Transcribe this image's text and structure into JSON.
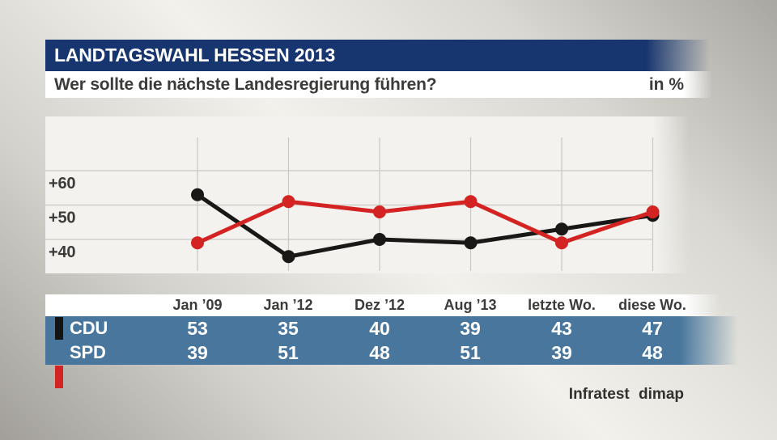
{
  "header": {
    "kicker": "LANDTAGSWAHL HESSEN 2013",
    "question": "Wer sollte die nächste Landesregierung führen?",
    "unit": "in %"
  },
  "chart_data": {
    "type": "line",
    "x": [
      "Jan ’09",
      "Jan ’12",
      "Dez ’12",
      "Aug ’13",
      "letzte Wo.",
      "diese Wo."
    ],
    "series": [
      {
        "name": "CDU",
        "color": "#1a1817",
        "values": [
          53,
          35,
          40,
          39,
          43,
          47
        ]
      },
      {
        "name": "SPD",
        "color": "#d32322",
        "values": [
          39,
          51,
          48,
          51,
          39,
          48
        ]
      }
    ],
    "yticks": [
      {
        "value": 60,
        "label": "+60"
      },
      {
        "value": 50,
        "label": "+50"
      },
      {
        "value": 40,
        "label": "+40"
      }
    ],
    "ylim": [
      30,
      76
    ],
    "grid": true,
    "legend_position": "table-rows-left"
  },
  "table": {
    "rows": [
      {
        "party": "CDU",
        "swatch": "#141414"
      },
      {
        "party": "SPD",
        "swatch": "#d32322"
      }
    ]
  },
  "source": {
    "label": "Infratest dimap"
  },
  "colors": {
    "kicker_bar": "#17356e",
    "kicker_text": "#ffffff",
    "question_text": "#3b3b39",
    "panel": "#f3f2ee",
    "grid": "#c9c8c2",
    "axis_text": "#3b3b39",
    "table_row_blue": "#48769d",
    "table_value_text": "#ffffff",
    "source_text": "#32312f"
  }
}
